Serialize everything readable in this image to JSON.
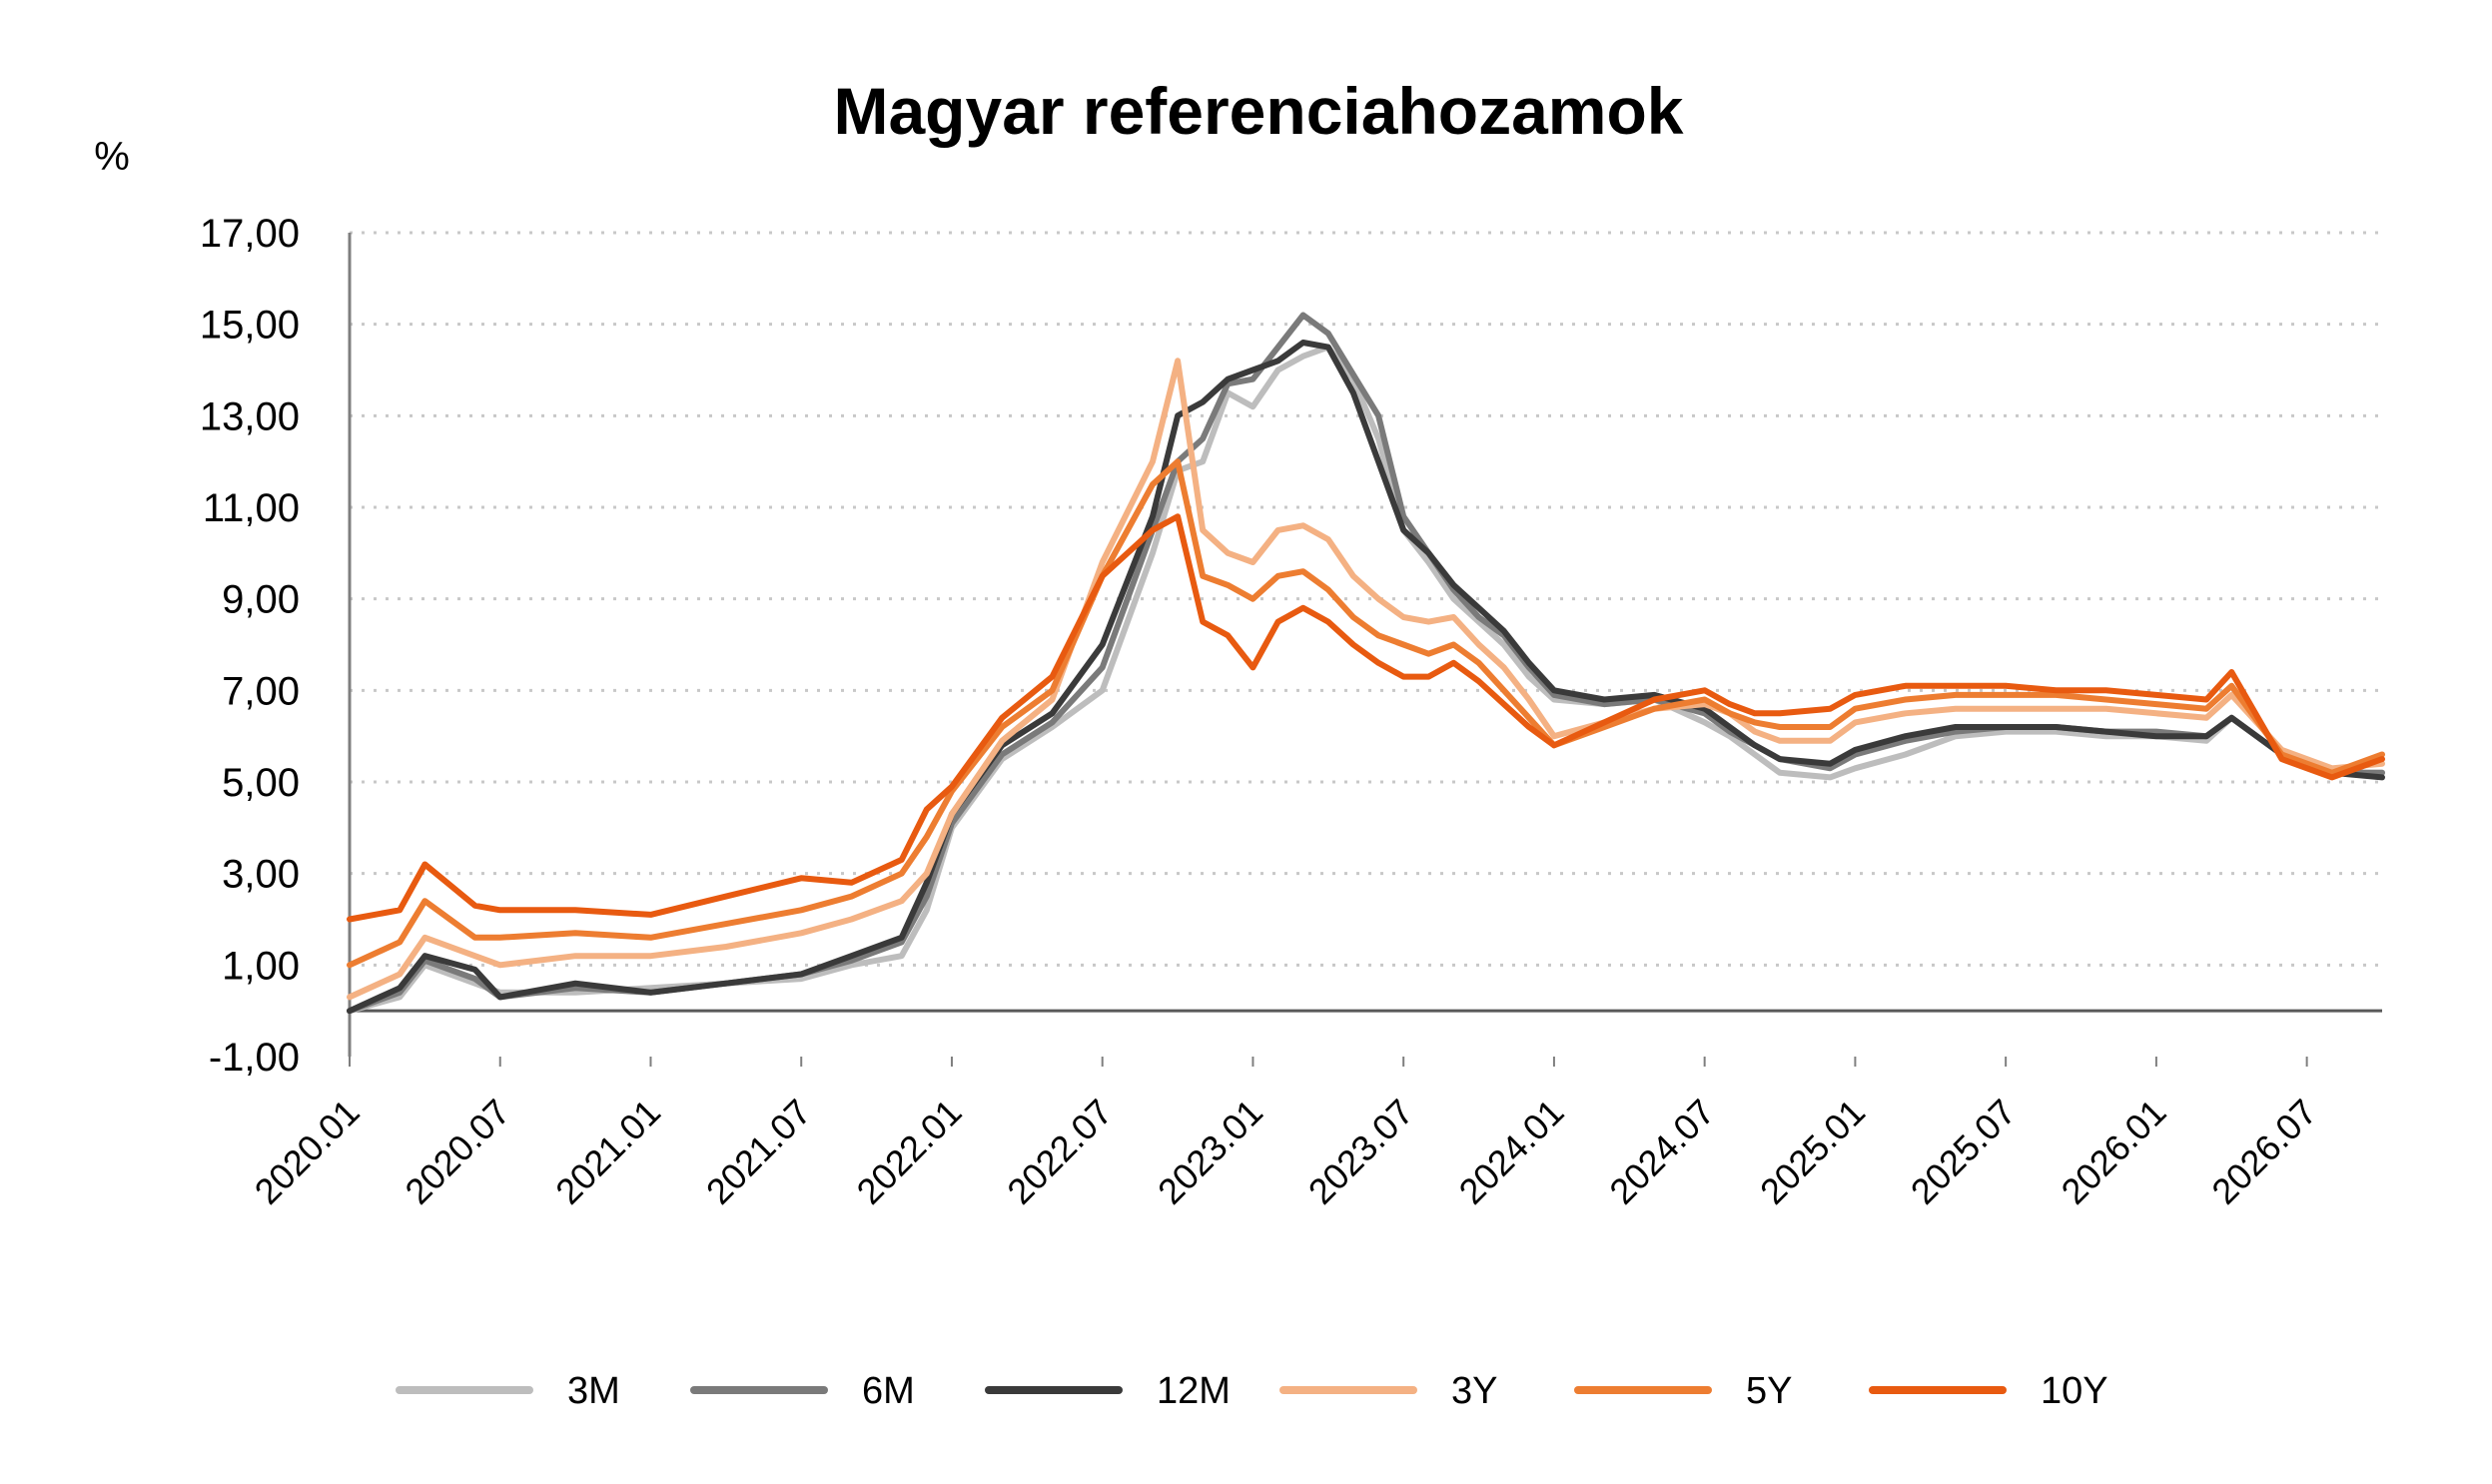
{
  "chart_data": {
    "type": "line",
    "title": "Magyar referenciahozamok",
    "ylabel": "%",
    "xlabel": "",
    "ylim": [
      -1,
      17
    ],
    "yticks": [
      "-1,00",
      "1,00",
      "3,00",
      "5,00",
      "7,00",
      "9,00",
      "11,00",
      "13,00",
      "15,00",
      "17,00"
    ],
    "ytick_values": [
      -1,
      1,
      3,
      5,
      7,
      9,
      11,
      13,
      15,
      17
    ],
    "xlim": [
      "2020.01",
      "2026.10"
    ],
    "xticks": [
      "2020.01",
      "2020.07",
      "2021.01",
      "2021.07",
      "2022.01",
      "2022.07",
      "2023.01",
      "2023.07",
      "2024.01",
      "2024.07",
      "2025.01",
      "2025.07",
      "2026.01",
      "2026.07"
    ],
    "grid": "horizontal dotted",
    "legend_position": "bottom",
    "series": [
      {
        "name": "3M",
        "color": "#bdbdbd",
        "x": [
          "2020.01",
          "2020.03",
          "2020.04",
          "2020.06",
          "2020.07",
          "2020.10",
          "2021.01",
          "2021.04",
          "2021.07",
          "2021.09",
          "2021.11",
          "2021.12",
          "2022.01",
          "2022.03",
          "2022.05",
          "2022.07",
          "2022.09",
          "2022.10",
          "2022.11",
          "2022.12",
          "2023.01",
          "2023.02",
          "2023.03",
          "2023.04",
          "2023.05",
          "2023.06",
          "2023.07",
          "2023.08",
          "2023.09",
          "2023.10",
          "2023.11",
          "2023.12",
          "2024.01",
          "2024.03",
          "2024.05",
          "2024.07",
          "2024.08",
          "2024.09",
          "2024.10",
          "2024.12",
          "2025.01",
          "2025.03",
          "2025.05",
          "2025.07",
          "2025.09",
          "2025.11",
          "2026.01",
          "2026.03",
          "2026.04",
          "2026.06",
          "2026.08",
          "2026.10"
        ],
        "y": [
          0.0,
          0.3,
          1.0,
          0.6,
          0.4,
          0.4,
          0.5,
          0.6,
          0.7,
          1.0,
          1.2,
          2.2,
          4.0,
          5.5,
          6.2,
          7.0,
          10.0,
          11.8,
          12.0,
          13.5,
          13.2,
          14.0,
          14.3,
          14.5,
          13.8,
          12.5,
          10.5,
          9.8,
          9.0,
          8.5,
          8.0,
          7.3,
          6.8,
          6.7,
          6.8,
          6.3,
          6.0,
          5.6,
          5.2,
          5.1,
          5.3,
          5.6,
          6.0,
          6.1,
          6.1,
          6.0,
          6.0,
          5.9,
          6.4,
          5.6,
          5.2,
          5.2
        ]
      },
      {
        "name": "6M",
        "color": "#7a7a7a",
        "x": [
          "2020.01",
          "2020.03",
          "2020.04",
          "2020.06",
          "2020.07",
          "2020.10",
          "2021.01",
          "2021.04",
          "2021.07",
          "2021.09",
          "2021.11",
          "2021.12",
          "2022.01",
          "2022.03",
          "2022.05",
          "2022.07",
          "2022.09",
          "2022.10",
          "2022.11",
          "2022.12",
          "2023.01",
          "2023.02",
          "2023.03",
          "2023.04",
          "2023.05",
          "2023.06",
          "2023.07",
          "2023.08",
          "2023.09",
          "2023.10",
          "2023.11",
          "2023.12",
          "2024.01",
          "2024.03",
          "2024.05",
          "2024.07",
          "2024.08",
          "2024.09",
          "2024.10",
          "2024.12",
          "2025.01",
          "2025.03",
          "2025.05",
          "2025.07",
          "2025.09",
          "2025.11",
          "2026.01",
          "2026.03",
          "2026.04",
          "2026.06",
          "2026.08",
          "2026.10"
        ],
        "y": [
          0.0,
          0.4,
          1.1,
          0.7,
          0.3,
          0.5,
          0.4,
          0.6,
          0.8,
          1.1,
          1.5,
          2.5,
          4.1,
          5.6,
          6.3,
          7.5,
          10.5,
          12.0,
          12.5,
          13.7,
          13.8,
          14.5,
          15.2,
          14.8,
          13.9,
          13.0,
          10.8,
          10.0,
          9.2,
          8.6,
          8.2,
          7.5,
          6.9,
          6.7,
          6.8,
          6.5,
          6.1,
          5.8,
          5.5,
          5.3,
          5.6,
          5.9,
          6.1,
          6.2,
          6.2,
          6.1,
          6.1,
          6.0,
          6.4,
          5.6,
          5.2,
          5.2
        ]
      },
      {
        "name": "12M",
        "color": "#3a3a3a",
        "x": [
          "2020.01",
          "2020.03",
          "2020.04",
          "2020.06",
          "2020.07",
          "2020.10",
          "2021.01",
          "2021.04",
          "2021.07",
          "2021.09",
          "2021.11",
          "2021.12",
          "2022.01",
          "2022.03",
          "2022.05",
          "2022.07",
          "2022.09",
          "2022.10",
          "2022.11",
          "2022.12",
          "2023.01",
          "2023.02",
          "2023.03",
          "2023.04",
          "2023.05",
          "2023.06",
          "2023.07",
          "2023.08",
          "2023.09",
          "2023.10",
          "2023.11",
          "2023.12",
          "2024.01",
          "2024.03",
          "2024.05",
          "2024.07",
          "2024.08",
          "2024.09",
          "2024.10",
          "2024.12",
          "2025.01",
          "2025.03",
          "2025.05",
          "2025.07",
          "2025.09",
          "2025.11",
          "2026.01",
          "2026.03",
          "2026.04",
          "2026.06",
          "2026.08",
          "2026.10"
        ],
        "y": [
          0.0,
          0.5,
          1.2,
          0.9,
          0.3,
          0.6,
          0.4,
          0.6,
          0.8,
          1.2,
          1.6,
          2.8,
          4.3,
          5.8,
          6.5,
          8.0,
          10.8,
          13.0,
          13.3,
          13.8,
          14.0,
          14.2,
          14.6,
          14.5,
          13.5,
          12.0,
          10.5,
          10.0,
          9.3,
          8.8,
          8.3,
          7.6,
          7.0,
          6.8,
          6.9,
          6.6,
          6.2,
          5.8,
          5.5,
          5.4,
          5.7,
          6.0,
          6.2,
          6.2,
          6.2,
          6.1,
          6.0,
          6.0,
          6.4,
          5.6,
          5.2,
          5.1
        ]
      },
      {
        "name": "3Y",
        "color": "#f4b183",
        "x": [
          "2020.01",
          "2020.03",
          "2020.04",
          "2020.06",
          "2020.07",
          "2020.10",
          "2021.01",
          "2021.04",
          "2021.07",
          "2021.09",
          "2021.11",
          "2021.12",
          "2022.01",
          "2022.03",
          "2022.05",
          "2022.07",
          "2022.09",
          "2022.10",
          "2022.11",
          "2022.12",
          "2023.01",
          "2023.02",
          "2023.03",
          "2023.04",
          "2023.05",
          "2023.06",
          "2023.07",
          "2023.08",
          "2023.09",
          "2023.10",
          "2023.11",
          "2023.12",
          "2024.01",
          "2024.03",
          "2024.05",
          "2024.07",
          "2024.08",
          "2024.09",
          "2024.10",
          "2024.12",
          "2025.01",
          "2025.03",
          "2025.05",
          "2025.07",
          "2025.09",
          "2025.11",
          "2026.01",
          "2026.03",
          "2026.04",
          "2026.06",
          "2026.08",
          "2026.10"
        ],
        "y": [
          0.3,
          0.8,
          1.6,
          1.2,
          1.0,
          1.2,
          1.2,
          1.4,
          1.7,
          2.0,
          2.4,
          3.0,
          4.3,
          5.9,
          6.8,
          9.8,
          12.0,
          14.2,
          10.5,
          10.0,
          9.8,
          10.5,
          10.6,
          10.3,
          9.5,
          9.0,
          8.6,
          8.5,
          8.6,
          8.0,
          7.5,
          6.8,
          6.0,
          6.3,
          6.6,
          6.7,
          6.5,
          6.1,
          5.9,
          5.9,
          6.3,
          6.5,
          6.6,
          6.6,
          6.6,
          6.6,
          6.5,
          6.4,
          6.9,
          5.7,
          5.3,
          5.4
        ]
      },
      {
        "name": "5Y",
        "color": "#ed7d31",
        "x": [
          "2020.01",
          "2020.03",
          "2020.04",
          "2020.06",
          "2020.07",
          "2020.10",
          "2021.01",
          "2021.04",
          "2021.07",
          "2021.09",
          "2021.11",
          "2021.12",
          "2022.01",
          "2022.03",
          "2022.05",
          "2022.07",
          "2022.09",
          "2022.10",
          "2022.11",
          "2022.12",
          "2023.01",
          "2023.02",
          "2023.03",
          "2023.04",
          "2023.05",
          "2023.06",
          "2023.07",
          "2023.08",
          "2023.09",
          "2023.10",
          "2023.11",
          "2023.12",
          "2024.01",
          "2024.03",
          "2024.05",
          "2024.07",
          "2024.08",
          "2024.09",
          "2024.10",
          "2024.12",
          "2025.01",
          "2025.03",
          "2025.05",
          "2025.07",
          "2025.09",
          "2025.11",
          "2026.01",
          "2026.03",
          "2026.04",
          "2026.06",
          "2026.08",
          "2026.10"
        ],
        "y": [
          1.0,
          1.5,
          2.4,
          1.6,
          1.6,
          1.7,
          1.6,
          1.9,
          2.2,
          2.5,
          3.0,
          3.8,
          4.8,
          6.2,
          7.0,
          9.5,
          11.5,
          12.0,
          9.5,
          9.3,
          9.0,
          9.5,
          9.6,
          9.2,
          8.6,
          8.2,
          8.0,
          7.8,
          8.0,
          7.6,
          7.0,
          6.4,
          5.8,
          6.2,
          6.6,
          6.8,
          6.5,
          6.3,
          6.2,
          6.2,
          6.6,
          6.8,
          6.9,
          6.9,
          6.9,
          6.8,
          6.7,
          6.6,
          7.1,
          5.6,
          5.2,
          5.6
        ]
      },
      {
        "name": "10Y",
        "color": "#e85a10",
        "x": [
          "2020.01",
          "2020.03",
          "2020.04",
          "2020.06",
          "2020.07",
          "2020.10",
          "2021.01",
          "2021.04",
          "2021.07",
          "2021.09",
          "2021.11",
          "2021.12",
          "2022.01",
          "2022.03",
          "2022.05",
          "2022.07",
          "2022.09",
          "2022.10",
          "2022.11",
          "2022.12",
          "2023.01",
          "2023.02",
          "2023.03",
          "2023.04",
          "2023.05",
          "2023.06",
          "2023.07",
          "2023.08",
          "2023.09",
          "2023.10",
          "2023.11",
          "2023.12",
          "2024.01",
          "2024.03",
          "2024.05",
          "2024.07",
          "2024.08",
          "2024.09",
          "2024.10",
          "2024.12",
          "2025.01",
          "2025.03",
          "2025.05",
          "2025.07",
          "2025.09",
          "2025.11",
          "2026.01",
          "2026.03",
          "2026.04",
          "2026.06",
          "2026.08",
          "2026.10"
        ],
        "y": [
          2.0,
          2.2,
          3.2,
          2.3,
          2.2,
          2.2,
          2.1,
          2.5,
          2.9,
          2.8,
          3.3,
          4.4,
          4.9,
          6.4,
          7.3,
          9.5,
          10.5,
          10.8,
          8.5,
          8.2,
          7.5,
          8.5,
          8.8,
          8.5,
          8.0,
          7.6,
          7.3,
          7.3,
          7.6,
          7.2,
          6.7,
          6.2,
          5.8,
          6.3,
          6.8,
          7.0,
          6.7,
          6.5,
          6.5,
          6.6,
          6.9,
          7.1,
          7.1,
          7.1,
          7.0,
          7.0,
          6.9,
          6.8,
          7.4,
          5.5,
          5.1,
          5.5
        ]
      }
    ]
  }
}
